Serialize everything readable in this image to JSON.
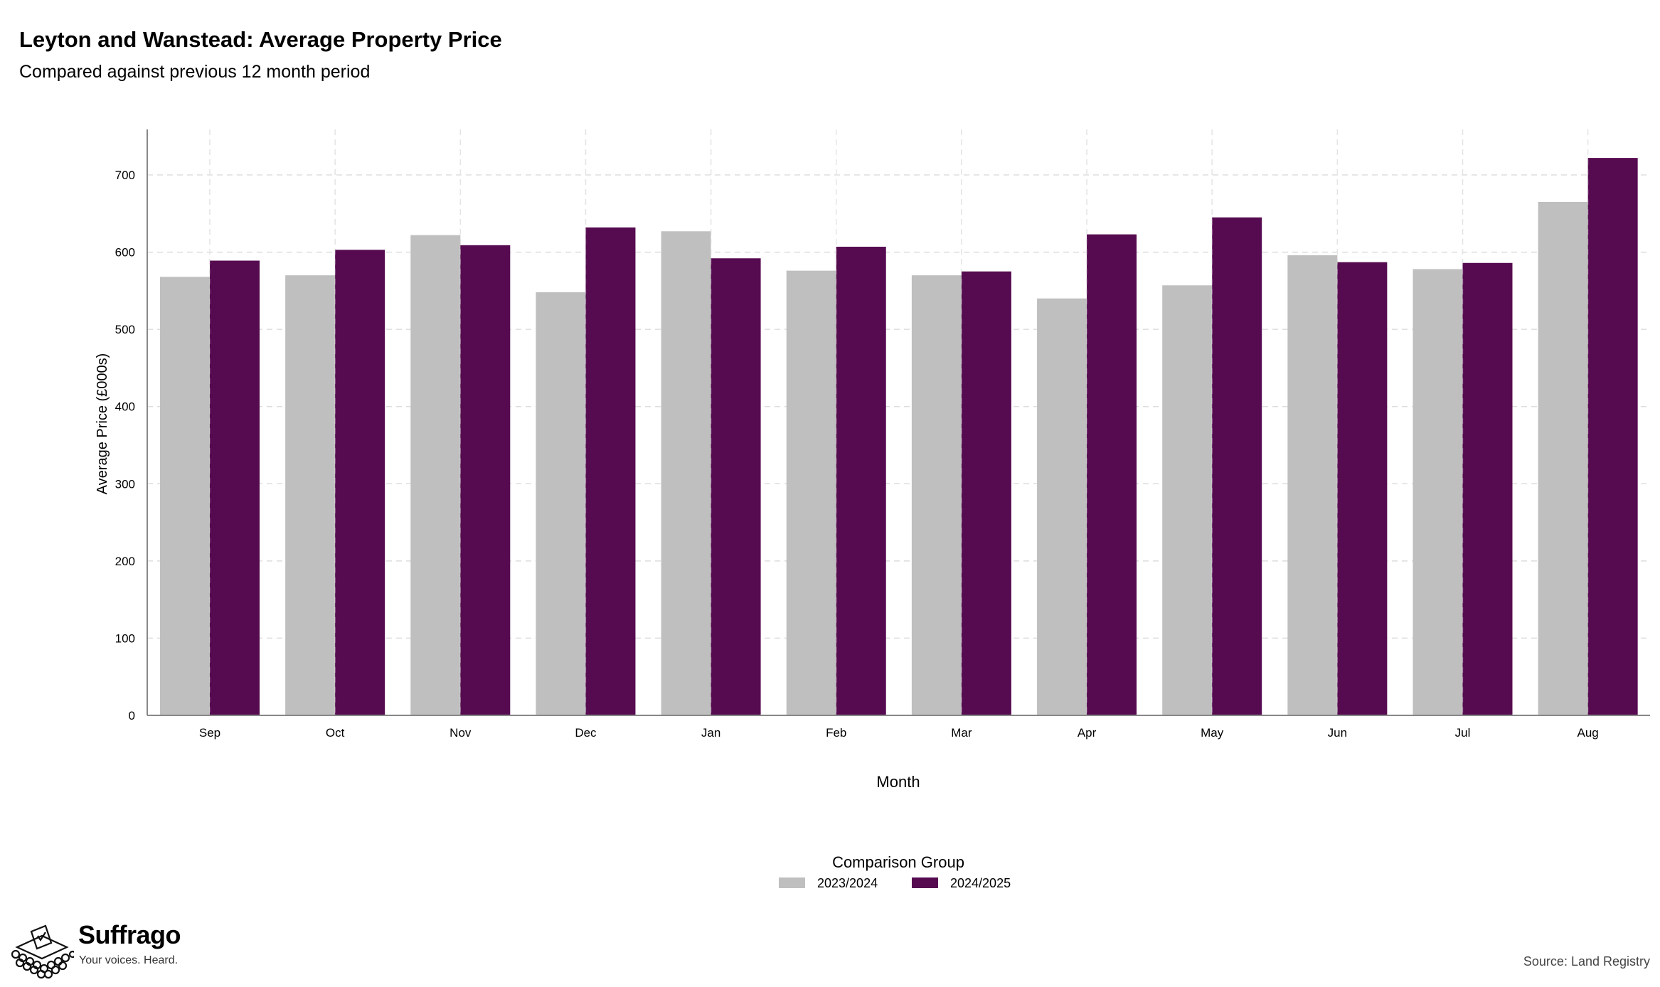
{
  "header": {
    "title": "Leyton and Wanstead: Average Property Price",
    "subtitle": "Compared against previous 12 month period"
  },
  "chart_data": {
    "type": "bar",
    "xlabel": "Month",
    "ylabel": "Average Price (£000s)",
    "ylim": [
      0,
      700
    ],
    "yticks": [
      0,
      100,
      200,
      300,
      400,
      500,
      600,
      700
    ],
    "grid": true,
    "categories": [
      "Sep",
      "Oct",
      "Nov",
      "Dec",
      "Jan",
      "Feb",
      "Mar",
      "Apr",
      "May",
      "Jun",
      "Jul",
      "Aug"
    ],
    "legend": {
      "title": "Comparison Group",
      "placement": "bottom"
    },
    "series": [
      {
        "name": "2023/2024",
        "color": "#bfbfbf",
        "values": [
          568,
          570,
          622,
          548,
          627,
          576,
          570,
          540,
          557,
          596,
          578,
          665
        ]
      },
      {
        "name": "2024/2025",
        "color": "#560b50",
        "values": [
          589,
          603,
          609,
          632,
          592,
          607,
          575,
          623,
          645,
          587,
          586,
          722
        ]
      }
    ]
  },
  "footer": {
    "brand": "Suffrago",
    "tagline": "Your voices. Heard.",
    "source": "Source: Land Registry"
  }
}
